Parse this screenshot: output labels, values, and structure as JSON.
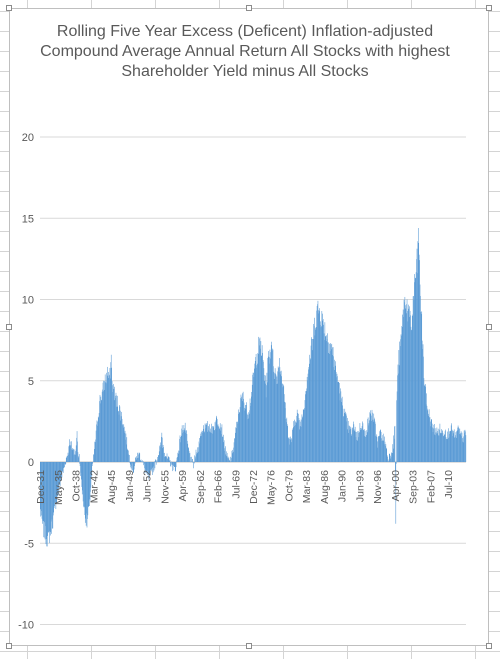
{
  "chart_data": {
    "type": "bar",
    "title": "Rolling Five Year Excess (Deficent) Inflation-adjusted Compound Average Annual Return All Stocks with highest Shareholder Yield minus All Stocks",
    "xlabel": "",
    "ylabel": "",
    "ylim": [
      -10,
      20
    ],
    "y_ticks": [
      "20",
      "15",
      "10",
      "5",
      "0",
      "-5",
      "-10"
    ],
    "x_tick_labels": [
      "Dec-31",
      "May-35",
      "Oct-38",
      "Mar-42",
      "Aug-45",
      "Jan-49",
      "Jun-52",
      "Nov-55",
      "Apr-59",
      "Sep-62",
      "Feb-66",
      "Jul-69",
      "Dec-72",
      "May-76",
      "Oct-79",
      "Mar-83",
      "Aug-86",
      "Jan-90",
      "Jun-93",
      "Nov-96",
      "Apr-00",
      "Sep-03",
      "Feb-07",
      "Jul-10"
    ],
    "gridlines": true,
    "legend": "none",
    "bar_color": "#5b9bd5",
    "x_start": "Dec-31",
    "x_end": "Dec-13",
    "anchors": [
      {
        "x": "Dec-31",
        "y": -3.0
      },
      {
        "x": "Jun-32",
        "y": -4.0
      },
      {
        "x": "Dec-32",
        "y": -4.5
      },
      {
        "x": "Jun-33",
        "y": -4.8
      },
      {
        "x": "Dec-33",
        "y": -4.2
      },
      {
        "x": "Jun-34",
        "y": -3.5
      },
      {
        "x": "Dec-34",
        "y": -2.5
      },
      {
        "x": "Jun-35",
        "y": -1.8
      },
      {
        "x": "Dec-35",
        "y": -1.0
      },
      {
        "x": "Jun-36",
        "y": -0.5
      },
      {
        "x": "Dec-36",
        "y": 0.2
      },
      {
        "x": "Jun-37",
        "y": 0.8
      },
      {
        "x": "Dec-37",
        "y": 1.0
      },
      {
        "x": "Jun-38",
        "y": 0.6
      },
      {
        "x": "Dec-38",
        "y": 0.9
      },
      {
        "x": "Jun-39",
        "y": 0.3
      },
      {
        "x": "Dec-39",
        "y": -1.5
      },
      {
        "x": "Jun-40",
        "y": -3.0
      },
      {
        "x": "Dec-40",
        "y": -3.8
      },
      {
        "x": "Jun-41",
        "y": -2.5
      },
      {
        "x": "Dec-41",
        "y": -0.5
      },
      {
        "x": "Jun-42",
        "y": 1.0
      },
      {
        "x": "Dec-42",
        "y": 2.5
      },
      {
        "x": "Jun-43",
        "y": 3.8
      },
      {
        "x": "Dec-43",
        "y": 4.3
      },
      {
        "x": "Jun-44",
        "y": 5.0
      },
      {
        "x": "Dec-44",
        "y": 5.5
      },
      {
        "x": "Jun-45",
        "y": 5.2
      },
      {
        "x": "Dec-45",
        "y": 4.6
      },
      {
        "x": "Jun-46",
        "y": 4.0
      },
      {
        "x": "Dec-46",
        "y": 3.5
      },
      {
        "x": "Jun-47",
        "y": 3.0
      },
      {
        "x": "Dec-47",
        "y": 2.4
      },
      {
        "x": "Jun-48",
        "y": 1.5
      },
      {
        "x": "Dec-48",
        "y": 0.6
      },
      {
        "x": "Jun-49",
        "y": -0.2
      },
      {
        "x": "Dec-49",
        "y": -0.5
      },
      {
        "x": "Jun-50",
        "y": 0.3
      },
      {
        "x": "Dec-50",
        "y": 0.5
      },
      {
        "x": "Jun-51",
        "y": 0.2
      },
      {
        "x": "Dec-51",
        "y": -0.3
      },
      {
        "x": "Jun-52",
        "y": -0.8
      },
      {
        "x": "Dec-52",
        "y": -1.0
      },
      {
        "x": "Jun-53",
        "y": -0.6
      },
      {
        "x": "Dec-53",
        "y": -0.2
      },
      {
        "x": "Jun-54",
        "y": 0.2
      },
      {
        "x": "Dec-54",
        "y": 0.8
      },
      {
        "x": "Jun-55",
        "y": 1.2
      },
      {
        "x": "Dec-55",
        "y": 0.6
      },
      {
        "x": "Jun-56",
        "y": 0.2
      },
      {
        "x": "Dec-56",
        "y": 0.0
      },
      {
        "x": "Jun-57",
        "y": -0.3
      },
      {
        "x": "Dec-57",
        "y": -0.5
      },
      {
        "x": "Jun-58",
        "y": 0.5
      },
      {
        "x": "Dec-58",
        "y": 1.5
      },
      {
        "x": "Jun-59",
        "y": 2.2
      },
      {
        "x": "Dec-59",
        "y": 2.0
      },
      {
        "x": "Jun-60",
        "y": 0.8
      },
      {
        "x": "Dec-60",
        "y": 0.2
      },
      {
        "x": "Jun-61",
        "y": -0.2
      },
      {
        "x": "Dec-61",
        "y": 0.5
      },
      {
        "x": "Jun-62",
        "y": 1.0
      },
      {
        "x": "Dec-62",
        "y": 1.8
      },
      {
        "x": "Jun-63",
        "y": 2.2
      },
      {
        "x": "Dec-63",
        "y": 2.0
      },
      {
        "x": "Jun-64",
        "y": 2.3
      },
      {
        "x": "Dec-64",
        "y": 2.0
      },
      {
        "x": "Jun-65",
        "y": 2.2
      },
      {
        "x": "Dec-65",
        "y": 2.6
      },
      {
        "x": "Jun-66",
        "y": 2.5
      },
      {
        "x": "Dec-66",
        "y": 2.0
      },
      {
        "x": "Jun-67",
        "y": 1.0
      },
      {
        "x": "Dec-67",
        "y": 0.3
      },
      {
        "x": "Jun-68",
        "y": 0.0
      },
      {
        "x": "Dec-68",
        "y": 0.5
      },
      {
        "x": "Jun-69",
        "y": 1.5
      },
      {
        "x": "Dec-69",
        "y": 2.5
      },
      {
        "x": "Jun-70",
        "y": 3.6
      },
      {
        "x": "Dec-70",
        "y": 4.0
      },
      {
        "x": "Jun-71",
        "y": 3.5
      },
      {
        "x": "Dec-71",
        "y": 3.0
      },
      {
        "x": "Jun-72",
        "y": 3.8
      },
      {
        "x": "Dec-72",
        "y": 5.0
      },
      {
        "x": "Jun-73",
        "y": 6.2
      },
      {
        "x": "Dec-73",
        "y": 7.0
      },
      {
        "x": "Jun-74",
        "y": 7.2
      },
      {
        "x": "Dec-74",
        "y": 6.0
      },
      {
        "x": "Jun-75",
        "y": 4.5
      },
      {
        "x": "Dec-75",
        "y": 6.5
      },
      {
        "x": "Jun-76",
        "y": 7.0
      },
      {
        "x": "Dec-76",
        "y": 6.0
      },
      {
        "x": "Jun-77",
        "y": 5.0
      },
      {
        "x": "Dec-77",
        "y": 6.2
      },
      {
        "x": "Jun-78",
        "y": 5.5
      },
      {
        "x": "Dec-78",
        "y": 4.0
      },
      {
        "x": "Jun-79",
        "y": 2.5
      },
      {
        "x": "Dec-79",
        "y": 1.2
      },
      {
        "x": "Jun-80",
        "y": 1.5
      },
      {
        "x": "Dec-80",
        "y": 2.5
      },
      {
        "x": "Jun-81",
        "y": 3.0
      },
      {
        "x": "Dec-81",
        "y": 2.2
      },
      {
        "x": "Jun-82",
        "y": 2.8
      },
      {
        "x": "Dec-82",
        "y": 4.0
      },
      {
        "x": "Jun-83",
        "y": 5.5
      },
      {
        "x": "Dec-83",
        "y": 6.5
      },
      {
        "x": "Jun-84",
        "y": 7.5
      },
      {
        "x": "Dec-84",
        "y": 8.8
      },
      {
        "x": "Jun-85",
        "y": 9.4
      },
      {
        "x": "Dec-85",
        "y": 9.2
      },
      {
        "x": "Jun-86",
        "y": 8.5
      },
      {
        "x": "Dec-86",
        "y": 8.0
      },
      {
        "x": "Jun-87",
        "y": 7.5
      },
      {
        "x": "Dec-87",
        "y": 7.2
      },
      {
        "x": "Jun-88",
        "y": 6.5
      },
      {
        "x": "Dec-88",
        "y": 5.5
      },
      {
        "x": "Jun-89",
        "y": 4.8
      },
      {
        "x": "Dec-89",
        "y": 3.8
      },
      {
        "x": "Jun-90",
        "y": 3.2
      },
      {
        "x": "Dec-90",
        "y": 2.5
      },
      {
        "x": "Jun-91",
        "y": 2.0
      },
      {
        "x": "Dec-91",
        "y": 1.8
      },
      {
        "x": "Jun-92",
        "y": 2.3
      },
      {
        "x": "Dec-92",
        "y": 1.5
      },
      {
        "x": "Jun-93",
        "y": 2.0
      },
      {
        "x": "Dec-93",
        "y": 2.5
      },
      {
        "x": "Jun-94",
        "y": 1.6
      },
      {
        "x": "Dec-94",
        "y": 2.2
      },
      {
        "x": "Jun-95",
        "y": 2.8
      },
      {
        "x": "Dec-95",
        "y": 3.0
      },
      {
        "x": "Jun-96",
        "y": 2.2
      },
      {
        "x": "Dec-96",
        "y": 1.2
      },
      {
        "x": "Jun-97",
        "y": 1.8
      },
      {
        "x": "Dec-97",
        "y": 1.5
      },
      {
        "x": "Jun-98",
        "y": 1.2
      },
      {
        "x": "Dec-98",
        "y": 0.2
      },
      {
        "x": "Jun-99",
        "y": 0.5
      },
      {
        "x": "Dec-99",
        "y": 1.0
      },
      {
        "x": "Jun-00",
        "y": 3.0
      },
      {
        "x": "Dec-00",
        "y": 6.0
      },
      {
        "x": "Jun-01",
        "y": 7.5
      },
      {
        "x": "Dec-01",
        "y": 9.5
      },
      {
        "x": "Jun-02",
        "y": 10.0
      },
      {
        "x": "Dec-02",
        "y": 9.0
      },
      {
        "x": "Jun-03",
        "y": 8.2
      },
      {
        "x": "Dec-03",
        "y": 10.5
      },
      {
        "x": "Jun-04",
        "y": 12.0
      },
      {
        "x": "Dec-04",
        "y": 12.3
      },
      {
        "x": "Jun-05",
        "y": 8.5
      },
      {
        "x": "Dec-05",
        "y": 5.0
      },
      {
        "x": "Jun-06",
        "y": 3.5
      },
      {
        "x": "Dec-06",
        "y": 2.8
      },
      {
        "x": "Jun-07",
        "y": 2.2
      },
      {
        "x": "Dec-07",
        "y": 2.0
      },
      {
        "x": "Jun-08",
        "y": 1.8
      },
      {
        "x": "Dec-08",
        "y": 2.0
      },
      {
        "x": "Jun-09",
        "y": 1.8
      },
      {
        "x": "Dec-09",
        "y": 2.0
      },
      {
        "x": "Jun-10",
        "y": 1.6
      },
      {
        "x": "Dec-10",
        "y": 2.2
      },
      {
        "x": "Jun-11",
        "y": 1.8
      },
      {
        "x": "Dec-11",
        "y": 1.5
      },
      {
        "x": "Jun-12",
        "y": 2.0
      },
      {
        "x": "Dec-12",
        "y": 1.6
      },
      {
        "x": "Jun-13",
        "y": 1.5
      },
      {
        "x": "Dec-13",
        "y": 1.8
      }
    ],
    "spikes": [
      {
        "x": "Oct-04",
        "y": 14.4
      },
      {
        "x": "Aug-45",
        "y": 6.6
      },
      {
        "x": "Mar-74",
        "y": 7.6
      },
      {
        "x": "Jul-76",
        "y": 7.4
      },
      {
        "x": "Apr-85",
        "y": 9.6
      },
      {
        "x": "Jun-00",
        "y": -3.8
      },
      {
        "x": "Jan-39",
        "y": 1.9
      },
      {
        "x": "Aug-37",
        "y": 1.4
      },
      {
        "x": "May-55",
        "y": 1.8
      }
    ]
  }
}
